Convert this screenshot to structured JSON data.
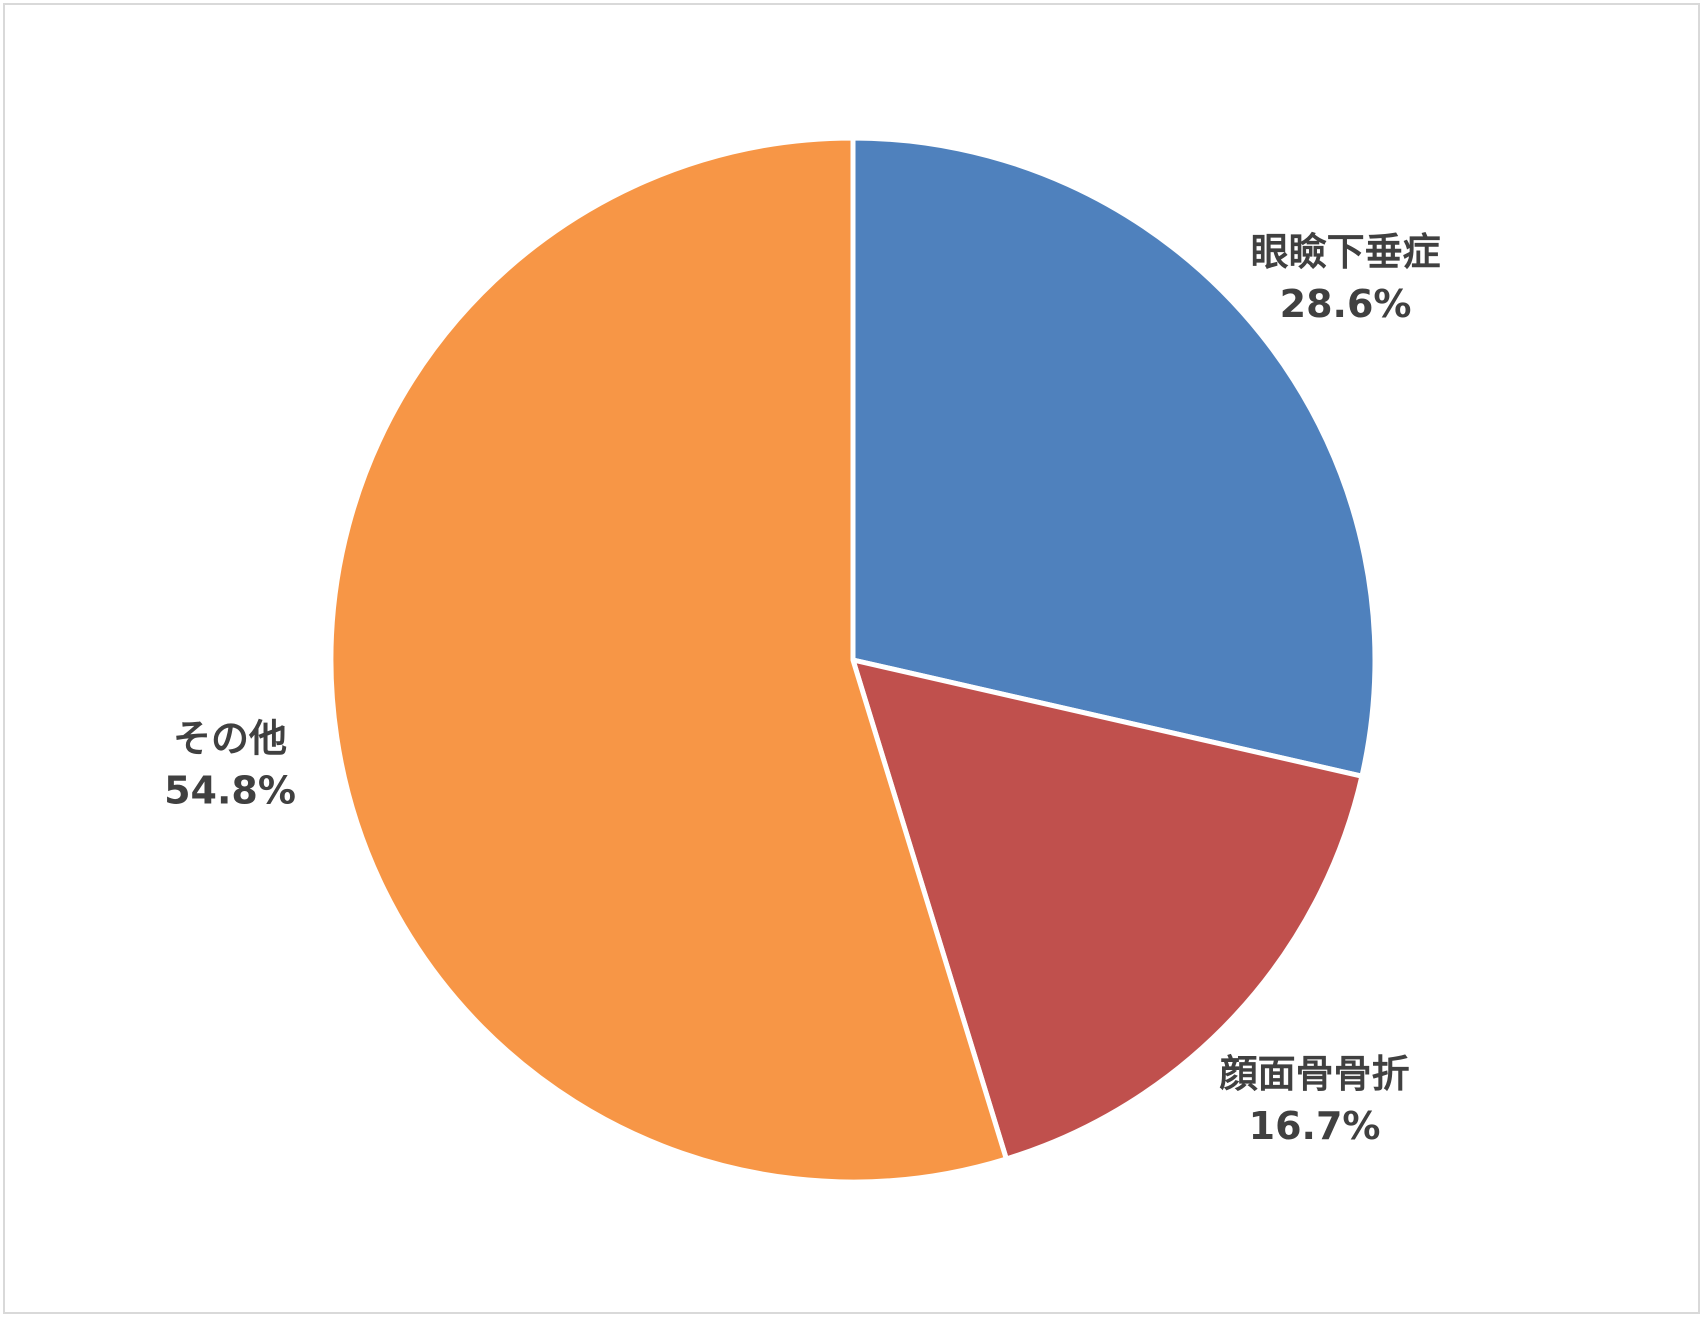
{
  "chart_data": {
    "type": "pie",
    "title": "",
    "start_angle_deg": 0,
    "direction": "clockwise",
    "slices": [
      {
        "label": "眼瞼下垂症",
        "value": 28.6,
        "display": "28.6%",
        "color": "#4F81BD"
      },
      {
        "label": "顔面骨骨折",
        "value": 16.7,
        "display": "16.7%",
        "color": "#C0504D"
      },
      {
        "label": "その他",
        "value": 54.8,
        "display": "54.8%",
        "color": "#F79646"
      }
    ],
    "legend": "none",
    "data_labels": "outside-end"
  }
}
